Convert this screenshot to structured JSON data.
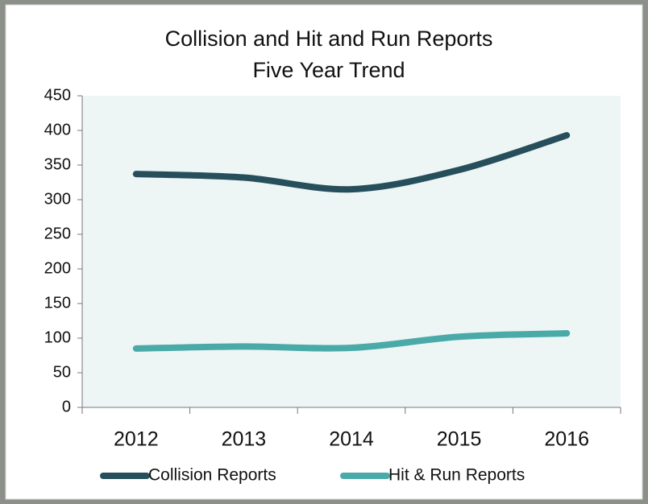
{
  "chart_data": {
    "type": "line",
    "title": "Collision and Hit and Run Reports",
    "subtitle": "Five Year Trend",
    "categories": [
      "2012",
      "2013",
      "2014",
      "2015",
      "2016"
    ],
    "series": [
      {
        "name": "Collision Reports",
        "color": "#264f5b",
        "values": [
          337,
          332,
          315,
          343,
          393
        ]
      },
      {
        "name": "Hit & Run Reports",
        "color": "#4aaaa8",
        "values": [
          85,
          88,
          86,
          102,
          107
        ]
      }
    ],
    "ylim": [
      0,
      450
    ],
    "yticks": [
      0,
      50,
      100,
      150,
      200,
      250,
      300,
      350,
      400,
      450
    ],
    "smooth": true,
    "legend": "bottom"
  }
}
